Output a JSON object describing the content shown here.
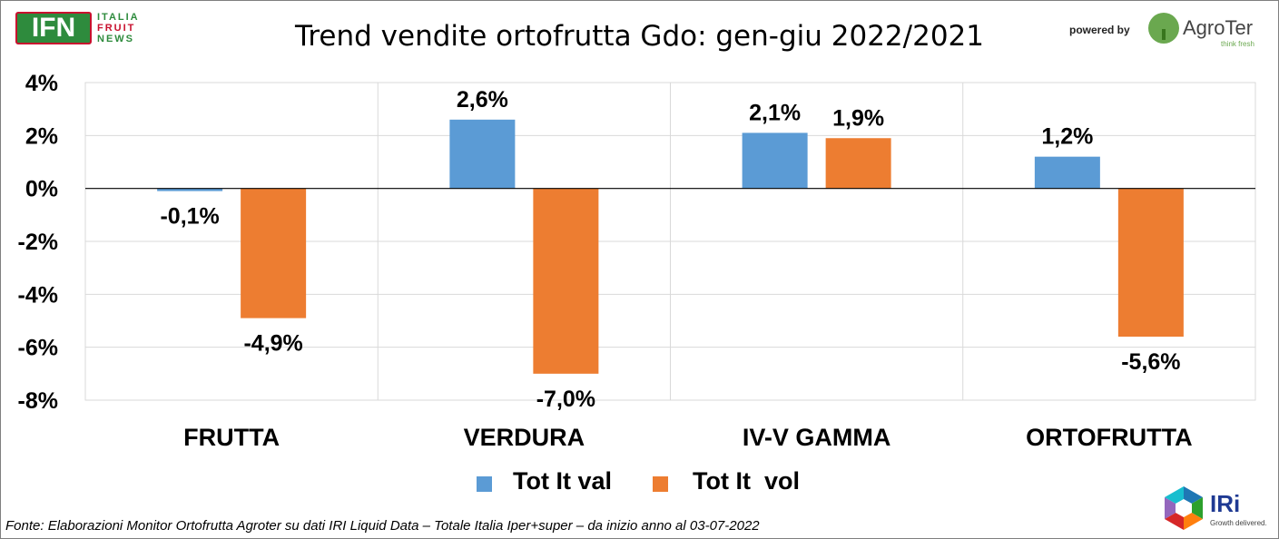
{
  "header": {
    "title": "Trend vendite ortofrutta Gdo: gen-giu 2022/2021",
    "ifn_logo": {
      "mark": "IFN",
      "line1": "ITALIA",
      "line2": "FRUIT",
      "line3": "NEWS"
    },
    "powered_by": "powered by",
    "agroter_logo": {
      "name": "AgroTer",
      "tagline": "think fresh"
    }
  },
  "footer": {
    "source": "Fonte: Elaborazioni Monitor Ortofrutta Agroter su dati IRI Liquid Data – Totale Italia Iper+super –  da inizio anno al 03-07-2022",
    "iri_logo": {
      "name": "IRi",
      "tagline": "Growth delivered."
    }
  },
  "chart_data": {
    "type": "bar",
    "title": "Trend vendite ortofrutta Gdo: gen-giu 2022/2021",
    "categories": [
      "FRUTTA",
      "VERDURA",
      "IV-V GAMMA",
      "ORTOFRUTTA"
    ],
    "series": [
      {
        "name": "Tot It val",
        "values": [
          -0.1,
          2.6,
          2.1,
          1.2
        ],
        "labels": [
          "-0,1%",
          "2,6%",
          "2,1%",
          "1,2%"
        ],
        "color": "#5b9bd5"
      },
      {
        "name": "Tot It  vol",
        "values": [
          -4.9,
          -7.0,
          1.9,
          -5.6
        ],
        "labels": [
          "-4,9%",
          "-7,0%",
          "1,9%",
          "-5,6%"
        ],
        "color": "#ed7d31"
      }
    ],
    "ylim": [
      -8,
      4
    ],
    "yticks": [
      4,
      2,
      0,
      -2,
      -4,
      -6,
      -8
    ],
    "ytick_labels": [
      "4%",
      "2%",
      "0%",
      "-2%",
      "-4%",
      "-6%",
      "-8%"
    ],
    "grid": true,
    "legend_position": "bottom"
  }
}
